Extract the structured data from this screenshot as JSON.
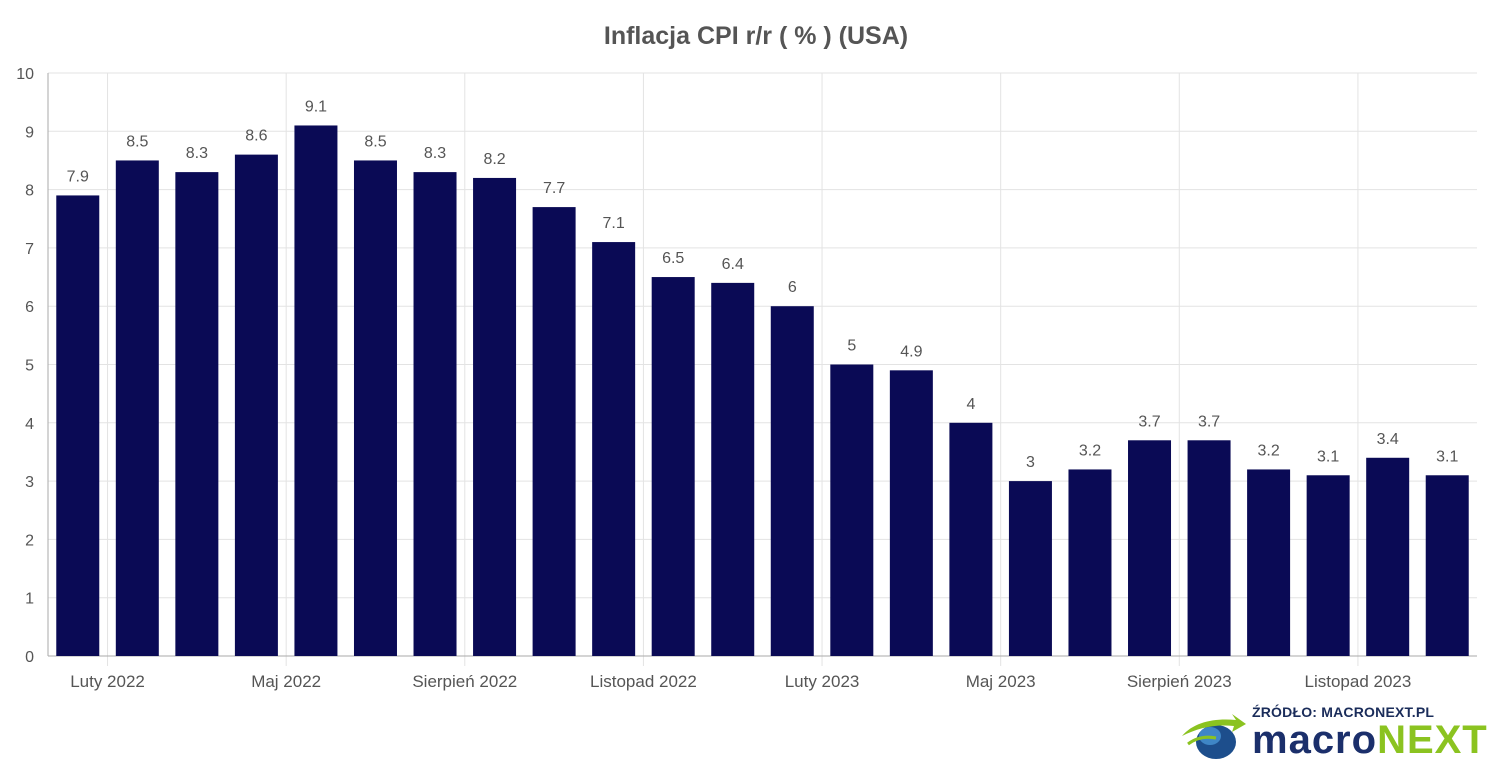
{
  "chart_data": {
    "type": "bar",
    "title": "Inflacja CPI r/r ( % ) (USA)",
    "xlabel": "",
    "ylabel": "",
    "ylim": [
      0,
      10
    ],
    "yticks": [
      0,
      1,
      2,
      3,
      4,
      5,
      6,
      7,
      8,
      9,
      10
    ],
    "grid": true,
    "bar_color": "#0a0a55",
    "categories": [
      "2022-01",
      "2022-02",
      "2022-03",
      "2022-04",
      "2022-05",
      "2022-06",
      "2022-07",
      "2022-08",
      "2022-09",
      "2022-10",
      "2022-11",
      "2022-12",
      "2023-01",
      "2023-02",
      "2023-03",
      "2023-04",
      "2023-05",
      "2023-06",
      "2023-07",
      "2023-08",
      "2023-09",
      "2023-10",
      "2023-11",
      "2023-12"
    ],
    "values": [
      7.9,
      8.5,
      8.3,
      8.6,
      9.1,
      8.5,
      8.3,
      8.2,
      7.7,
      7.1,
      6.5,
      6.4,
      6.0,
      5.0,
      4.9,
      4.0,
      3.0,
      3.2,
      3.7,
      3.7,
      3.2,
      3.1,
      3.4,
      3.1
    ],
    "data_labels": [
      "7.9",
      "8.5",
      "8.3",
      "8.6",
      "9.1",
      "8.5",
      "8.3",
      "8.2",
      "7.7",
      "7.1",
      "6.5",
      "6.4",
      "6",
      "5",
      "4.9",
      "4",
      "3",
      "3.2",
      "3.7",
      "3.7",
      "3.2",
      "3.1",
      "3.4",
      "3.1"
    ],
    "x_tick_labels": [
      {
        "category": "2022-02",
        "label": "Luty 2022"
      },
      {
        "category": "2022-05",
        "label": "Maj 2022"
      },
      {
        "category": "2022-08",
        "label": "Sierpień 2022"
      },
      {
        "category": "2022-11",
        "label": "Listopad 2022"
      },
      {
        "category": "2023-02",
        "label": "Luty 2023"
      },
      {
        "category": "2023-05",
        "label": "Maj 2023"
      },
      {
        "category": "2023-08",
        "label": "Sierpień 2023"
      },
      {
        "category": "2023-11",
        "label": "Listopad 2023"
      }
    ]
  },
  "source": {
    "text": "ŹRÓDŁO: MACRONEXT.PL",
    "brand_part1": "macro",
    "brand_part2": "NEXT",
    "logo_icon": "macronext-logo-icon"
  }
}
